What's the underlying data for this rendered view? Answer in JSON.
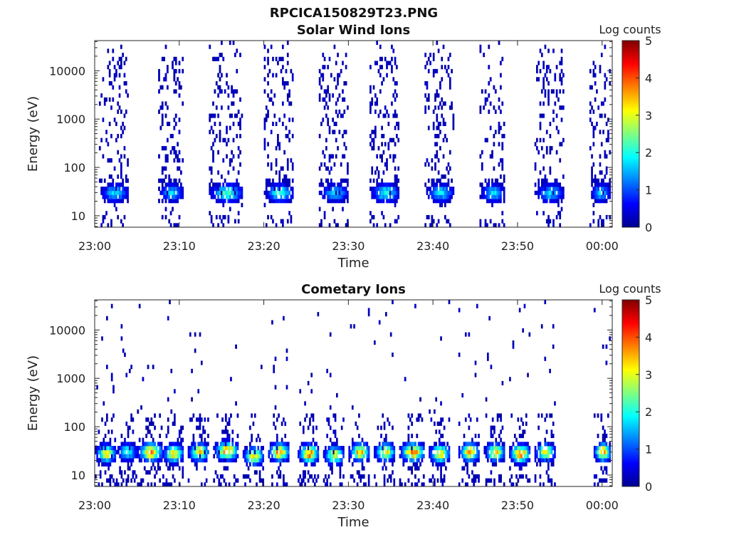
{
  "figure_title": "RPCICA150829T23.PNG",
  "colormap": [
    "#00008f",
    "#0000ff",
    "#0080ff",
    "#00ffff",
    "#80ff80",
    "#ffff00",
    "#ff8000",
    "#ff0000",
    "#800000"
  ],
  "chart_data": [
    {
      "type": "heatmap",
      "title": "Solar Wind Ions",
      "xlabel": "Time",
      "ylabel": "Energy (eV)",
      "x_tick_labels": [
        "23:00",
        "23:10",
        "23:20",
        "23:30",
        "23:40",
        "23:50",
        "00:00"
      ],
      "x_tick_minutes": [
        0,
        10,
        20,
        30,
        40,
        50,
        60
      ],
      "xlim_minutes": [
        0,
        61.2
      ],
      "y_scale": "log",
      "y_tick_labels": [
        "10",
        "100",
        "1000",
        "10000"
      ],
      "y_tick_values": [
        10,
        100,
        1000,
        10000
      ],
      "ylim": [
        5.8,
        42000
      ],
      "colorbar": {
        "label": "Log counts",
        "range": [
          0,
          5
        ],
        "ticks": [
          "0",
          "1",
          "2",
          "3",
          "4",
          "5"
        ]
      },
      "sweeps": [
        {
          "t_start": 0.5,
          "t_end": 4.0,
          "peak_log_counts": 1.9,
          "peak_energy": 30
        },
        {
          "t_start": 7.5,
          "t_end": 10.5,
          "peak_log_counts": 1.8,
          "peak_energy": 30
        },
        {
          "t_start": 13.5,
          "t_end": 17.5,
          "peak_log_counts": 2.4,
          "peak_energy": 30
        },
        {
          "t_start": 20.0,
          "t_end": 23.5,
          "peak_log_counts": 2.3,
          "peak_energy": 30
        },
        {
          "t_start": 26.5,
          "t_end": 30.0,
          "peak_log_counts": 1.8,
          "peak_energy": 30
        },
        {
          "t_start": 32.5,
          "t_end": 36.0,
          "peak_log_counts": 2.2,
          "peak_energy": 30
        },
        {
          "t_start": 39.0,
          "t_end": 42.5,
          "peak_log_counts": 1.9,
          "peak_energy": 30
        },
        {
          "t_start": 45.5,
          "t_end": 48.5,
          "peak_log_counts": 1.9,
          "peak_energy": 30
        },
        {
          "t_start": 52.0,
          "t_end": 55.5,
          "peak_log_counts": 1.9,
          "peak_energy": 30
        },
        {
          "t_start": 58.5,
          "t_end": 61.0,
          "peak_log_counts": 1.8,
          "peak_energy": 30
        }
      ]
    },
    {
      "type": "heatmap",
      "title": "Cometary Ions",
      "xlabel": "Time",
      "ylabel": "Energy (eV)",
      "x_tick_labels": [
        "23:00",
        "23:10",
        "23:20",
        "23:30",
        "23:40",
        "23:50",
        "00:00"
      ],
      "x_tick_minutes": [
        0,
        10,
        20,
        30,
        40,
        50,
        60
      ],
      "xlim_minutes": [
        0,
        61.2
      ],
      "y_scale": "log",
      "y_tick_labels": [
        "10",
        "100",
        "1000",
        "10000"
      ],
      "y_tick_values": [
        10,
        100,
        1000,
        10000
      ],
      "ylim": [
        5.8,
        42000
      ],
      "colorbar": {
        "label": "Log counts",
        "range": [
          0,
          5
        ],
        "ticks": [
          "0",
          "1",
          "2",
          "3",
          "4",
          "5"
        ]
      },
      "sweeps": [
        {
          "t_start": 0.0,
          "t_end": 2.5,
          "peak_log_counts": 3.4,
          "peak_energy": 28
        },
        {
          "t_start": 2.5,
          "t_end": 5.0,
          "peak_log_counts": 2.2,
          "peak_energy": 30
        },
        {
          "t_start": 5.0,
          "t_end": 8.0,
          "peak_log_counts": 4.0,
          "peak_energy": 30
        },
        {
          "t_start": 8.0,
          "t_end": 10.5,
          "peak_log_counts": 3.5,
          "peak_energy": 28
        },
        {
          "t_start": 11.0,
          "t_end": 13.5,
          "peak_log_counts": 3.4,
          "peak_energy": 30
        },
        {
          "t_start": 14.0,
          "t_end": 17.0,
          "peak_log_counts": 4.0,
          "peak_energy": 32
        },
        {
          "t_start": 17.5,
          "t_end": 20.0,
          "peak_log_counts": 3.5,
          "peak_energy": 25
        },
        {
          "t_start": 20.5,
          "t_end": 23.0,
          "peak_log_counts": 4.0,
          "peak_energy": 30
        },
        {
          "t_start": 24.0,
          "t_end": 26.5,
          "peak_log_counts": 4.1,
          "peak_energy": 28
        },
        {
          "t_start": 27.0,
          "t_end": 29.5,
          "peak_log_counts": 3.3,
          "peak_energy": 26
        },
        {
          "t_start": 30.0,
          "t_end": 32.5,
          "peak_log_counts": 3.8,
          "peak_energy": 30
        },
        {
          "t_start": 33.0,
          "t_end": 35.5,
          "peak_log_counts": 3.5,
          "peak_energy": 30
        },
        {
          "t_start": 36.0,
          "t_end": 39.0,
          "peak_log_counts": 4.1,
          "peak_energy": 30
        },
        {
          "t_start": 39.5,
          "t_end": 42.0,
          "peak_log_counts": 3.6,
          "peak_energy": 28
        },
        {
          "t_start": 43.0,
          "t_end": 45.5,
          "peak_log_counts": 3.7,
          "peak_energy": 30
        },
        {
          "t_start": 46.0,
          "t_end": 48.5,
          "peak_log_counts": 3.5,
          "peak_energy": 30
        },
        {
          "t_start": 49.0,
          "t_end": 51.5,
          "peak_log_counts": 4.1,
          "peak_energy": 28
        },
        {
          "t_start": 52.0,
          "t_end": 54.5,
          "peak_log_counts": 3.3,
          "peak_energy": 30
        },
        {
          "t_start": 59.0,
          "t_end": 61.0,
          "peak_log_counts": 4.0,
          "peak_energy": 30
        }
      ]
    }
  ]
}
